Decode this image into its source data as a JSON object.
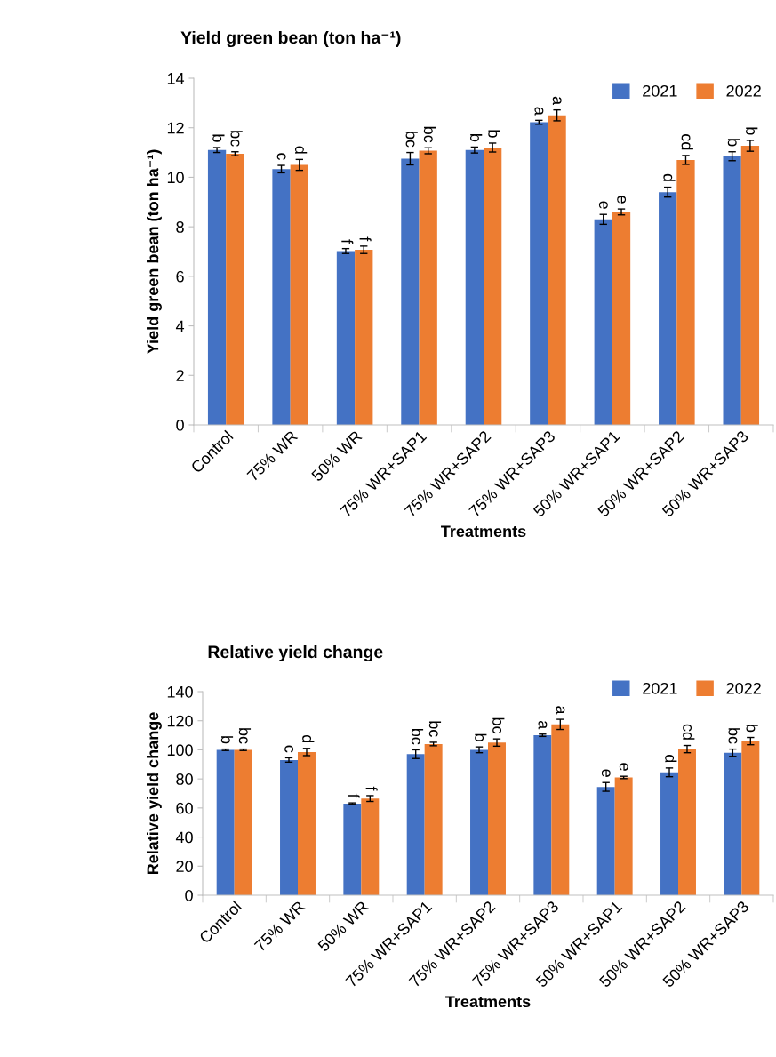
{
  "chart_data": [
    {
      "type": "bar",
      "title": "Yield green bean (ton ha⁻¹)",
      "xlabel": "Treatments",
      "ylabel": "Yield green bean (ton ha⁻¹)",
      "categories": [
        "Control",
        "75% WR",
        "50% WR",
        "75% WR+SAP1",
        "75% WR+SAP2",
        "75% WR+SAP3",
        "50% WR+SAP1",
        "50% WR+SAP2",
        "50% WR+SAP3"
      ],
      "series": [
        {
          "name": "2021",
          "color": "#4472c4",
          "values": [
            11.1,
            10.33,
            7.02,
            10.75,
            11.1,
            12.22,
            8.3,
            9.4,
            10.85
          ],
          "errors": [
            0.1,
            0.15,
            0.1,
            0.25,
            0.12,
            0.08,
            0.2,
            0.2,
            0.18
          ],
          "value_labels": [
            "b",
            "c",
            "f",
            "bc",
            "b",
            "a",
            "e",
            "d",
            "b"
          ]
        },
        {
          "name": "2022",
          "color": "#ed7d31",
          "values": [
            10.95,
            10.5,
            7.07,
            11.07,
            11.2,
            12.5,
            8.6,
            10.7,
            11.27
          ],
          "errors": [
            0.08,
            0.22,
            0.15,
            0.12,
            0.18,
            0.22,
            0.12,
            0.18,
            0.22
          ],
          "value_labels": [
            "bc",
            "d",
            "f",
            "bc",
            "b",
            "a",
            "e",
            "cd",
            "b"
          ]
        }
      ],
      "ylim": [
        0,
        14
      ],
      "yticks": [
        0,
        2,
        4,
        6,
        8,
        10,
        12,
        14
      ],
      "legend": "top right"
    },
    {
      "type": "bar",
      "title": "Relative yield change",
      "xlabel": "Treatments",
      "ylabel": "Relative yield change",
      "categories": [
        "Control",
        "75% WR",
        "50% WR",
        "75% WR+SAP1",
        "75% WR+SAP2",
        "75% WR+SAP3",
        "50% WR+SAP1",
        "50% WR+SAP2",
        "50% WR+SAP3"
      ],
      "series": [
        {
          "name": "2021",
          "color": "#4472c4",
          "values": [
            100,
            93,
            63,
            97,
            100,
            110,
            74.5,
            84.5,
            98
          ],
          "errors": [
            0.5,
            1.5,
            0.5,
            3,
            2,
            0.8,
            3,
            3,
            2.5
          ],
          "value_labels": [
            "b",
            "c",
            "f",
            "bc",
            "b",
            "a",
            "e",
            "d",
            "bc"
          ]
        },
        {
          "name": "2022",
          "color": "#ed7d31",
          "values": [
            100,
            98.5,
            66.5,
            104,
            105,
            117.5,
            81,
            100.5,
            106
          ],
          "errors": [
            0.5,
            2.5,
            2,
            1.2,
            2.5,
            3.5,
            0.8,
            2.5,
            2.5
          ],
          "value_labels": [
            "bc",
            "d",
            "f",
            "bc",
            "bc",
            "a",
            "e",
            "cd",
            "b"
          ]
        }
      ],
      "ylim": [
        0,
        140
      ],
      "yticks": [
        0,
        20,
        40,
        60,
        80,
        100,
        120,
        140
      ],
      "legend": "top right"
    }
  ]
}
